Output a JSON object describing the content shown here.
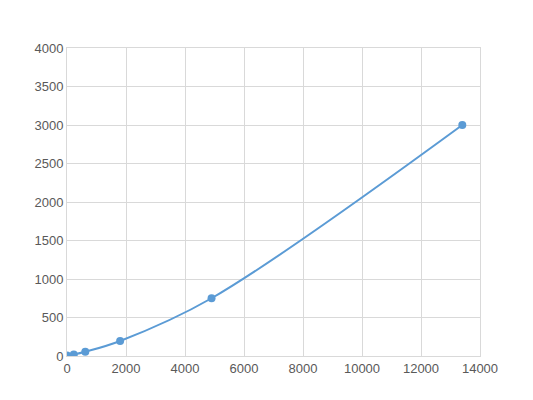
{
  "chart_data": {
    "type": "line",
    "x": [
      0,
      230,
      620,
      1800,
      4900,
      13400
    ],
    "values": [
      5,
      20,
      55,
      195,
      750,
      3000
    ],
    "color": "#5b9bd5",
    "marker": "circle",
    "line_style": "smooth",
    "xlim": [
      0,
      14000
    ],
    "xticks": [
      0,
      2000,
      4000,
      6000,
      8000,
      10000,
      12000,
      14000
    ],
    "ylim": [
      0,
      4000
    ],
    "yticks": [
      0,
      500,
      1000,
      1500,
      2000,
      2500,
      3000,
      3500,
      4000
    ],
    "grid": true
  }
}
